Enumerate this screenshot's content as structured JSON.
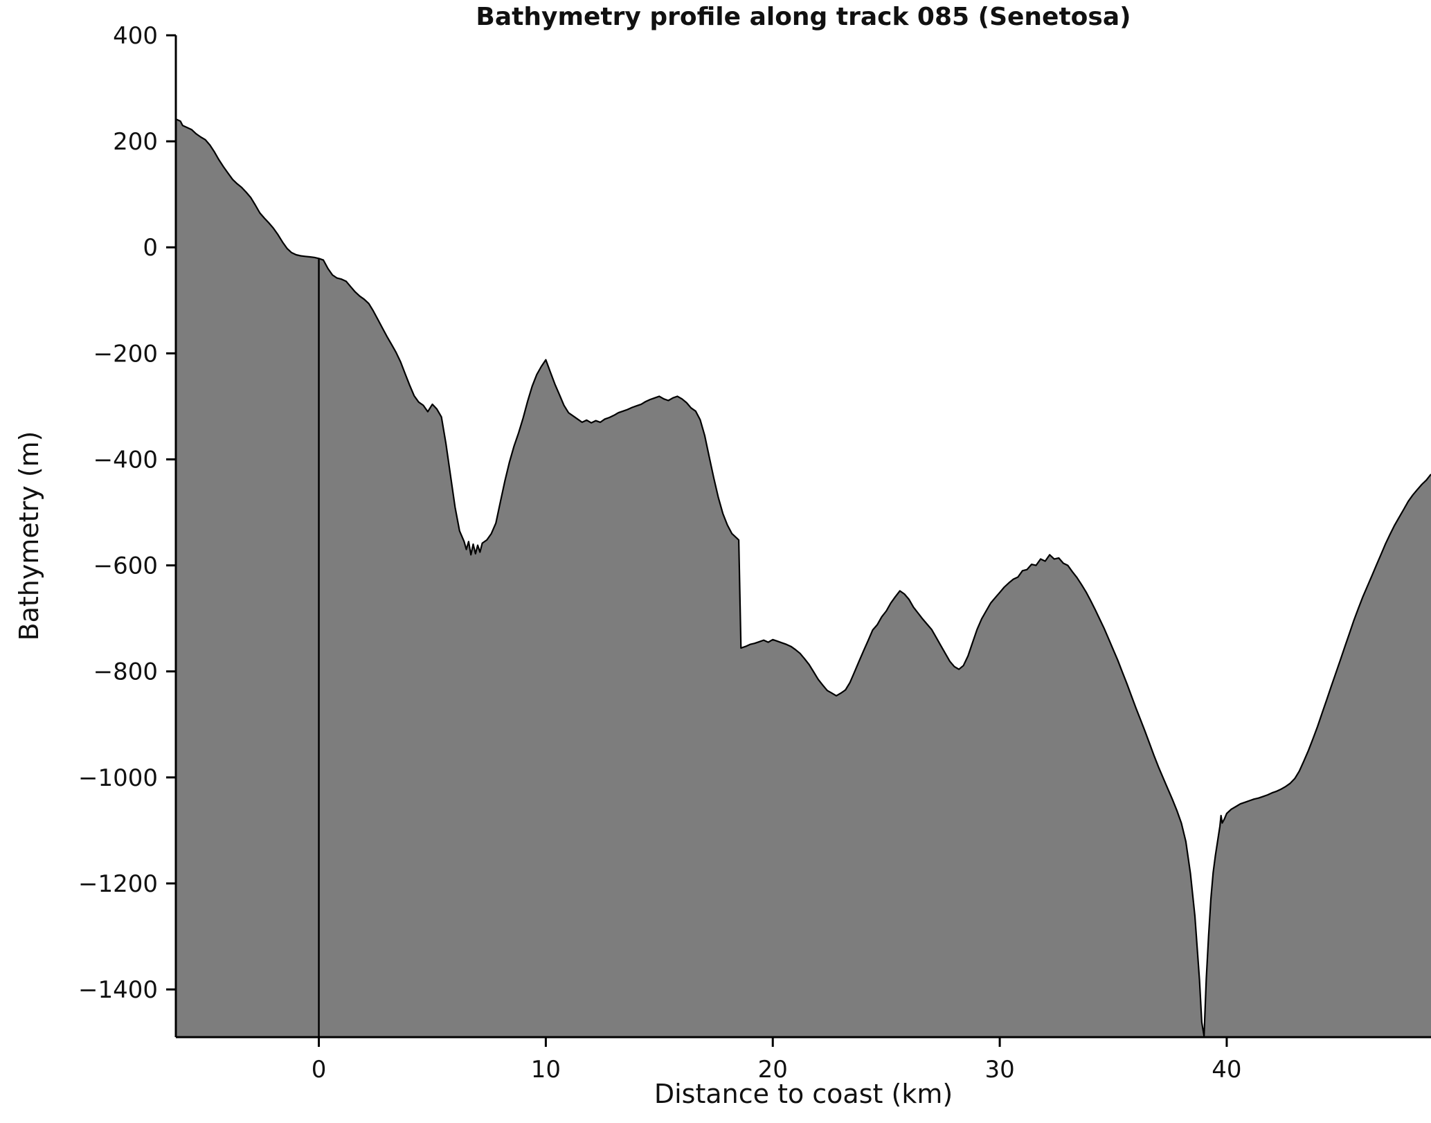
{
  "figure": {
    "title": "Bathymetry profile along track 085 (Senetosa)",
    "xlabel": "Distance to coast (km)",
    "ylabel": "Bathymetry (m)"
  },
  "chart_data": {
    "type": "area",
    "title": "Bathymetry profile along track 085 (Senetosa)",
    "xlabel": "Distance to coast (km)",
    "ylabel": "Bathymetry (m)",
    "xlim": [
      -6.3,
      49
    ],
    "ylim": [
      -1490,
      400
    ],
    "x_ticks": [
      0,
      10,
      20,
      30,
      40
    ],
    "y_ticks": [
      400,
      200,
      0,
      -200,
      -400,
      -600,
      -800,
      -1000,
      -1200,
      -1400
    ],
    "grid": false,
    "legend": "none",
    "fill_color": "#7d7d7d",
    "line_color": "#000000",
    "coast_line_x": 0,
    "points": [
      [
        -6.3,
        242
      ],
      [
        -6.1,
        238
      ],
      [
        -6,
        230
      ],
      [
        -5.8,
        226
      ],
      [
        -5.6,
        222
      ],
      [
        -5.4,
        214
      ],
      [
        -5.2,
        208
      ],
      [
        -5,
        203
      ],
      [
        -4.8,
        193
      ],
      [
        -4.6,
        180
      ],
      [
        -4.4,
        165
      ],
      [
        -4.2,
        152
      ],
      [
        -4,
        140
      ],
      [
        -3.8,
        128
      ],
      [
        -3.6,
        120
      ],
      [
        -3.4,
        113
      ],
      [
        -3.2,
        104
      ],
      [
        -3,
        94
      ],
      [
        -2.8,
        80
      ],
      [
        -2.6,
        65
      ],
      [
        -2.4,
        55
      ],
      [
        -2.2,
        46
      ],
      [
        -2,
        36
      ],
      [
        -1.8,
        24
      ],
      [
        -1.6,
        10
      ],
      [
        -1.4,
        -2
      ],
      [
        -1.2,
        -10
      ],
      [
        -1,
        -14
      ],
      [
        -0.8,
        -16
      ],
      [
        -0.6,
        -17
      ],
      [
        -0.4,
        -18
      ],
      [
        -0.2,
        -19
      ],
      [
        0,
        -21
      ],
      [
        0.2,
        -24
      ],
      [
        0.4,
        -40
      ],
      [
        0.6,
        -52
      ],
      [
        0.8,
        -58
      ],
      [
        1,
        -60
      ],
      [
        1.2,
        -64
      ],
      [
        1.4,
        -74
      ],
      [
        1.6,
        -84
      ],
      [
        1.8,
        -92
      ],
      [
        2,
        -98
      ],
      [
        2.2,
        -106
      ],
      [
        2.4,
        -120
      ],
      [
        2.6,
        -136
      ],
      [
        2.8,
        -152
      ],
      [
        3,
        -168
      ],
      [
        3.2,
        -183
      ],
      [
        3.4,
        -198
      ],
      [
        3.6,
        -216
      ],
      [
        3.8,
        -238
      ],
      [
        4,
        -260
      ],
      [
        4.2,
        -280
      ],
      [
        4.4,
        -292
      ],
      [
        4.6,
        -298
      ],
      [
        4.8,
        -310
      ],
      [
        5,
        -296
      ],
      [
        5.2,
        -305
      ],
      [
        5.4,
        -320
      ],
      [
        5.6,
        -370
      ],
      [
        5.8,
        -430
      ],
      [
        6,
        -490
      ],
      [
        6.2,
        -535
      ],
      [
        6.4,
        -555
      ],
      [
        6.5,
        -570
      ],
      [
        6.6,
        -555
      ],
      [
        6.7,
        -580
      ],
      [
        6.8,
        -560
      ],
      [
        6.9,
        -578
      ],
      [
        7,
        -562
      ],
      [
        7.1,
        -575
      ],
      [
        7.2,
        -558
      ],
      [
        7.4,
        -552
      ],
      [
        7.6,
        -540
      ],
      [
        7.8,
        -520
      ],
      [
        8,
        -480
      ],
      [
        8.2,
        -440
      ],
      [
        8.4,
        -405
      ],
      [
        8.6,
        -375
      ],
      [
        8.8,
        -350
      ],
      [
        9,
        -322
      ],
      [
        9.2,
        -290
      ],
      [
        9.4,
        -262
      ],
      [
        9.6,
        -240
      ],
      [
        9.8,
        -225
      ],
      [
        10,
        -212
      ],
      [
        10.2,
        -235
      ],
      [
        10.4,
        -258
      ],
      [
        10.6,
        -278
      ],
      [
        10.8,
        -298
      ],
      [
        11,
        -312
      ],
      [
        11.2,
        -318
      ],
      [
        11.4,
        -324
      ],
      [
        11.6,
        -330
      ],
      [
        11.8,
        -326
      ],
      [
        12,
        -331
      ],
      [
        12.2,
        -327
      ],
      [
        12.4,
        -330
      ],
      [
        12.6,
        -324
      ],
      [
        12.8,
        -321
      ],
      [
        13,
        -317
      ],
      [
        13.2,
        -312
      ],
      [
        13.4,
        -309
      ],
      [
        13.6,
        -306
      ],
      [
        13.8,
        -302
      ],
      [
        14,
        -299
      ],
      [
        14.2,
        -296
      ],
      [
        14.4,
        -291
      ],
      [
        14.6,
        -287
      ],
      [
        14.8,
        -284
      ],
      [
        15,
        -281
      ],
      [
        15.2,
        -286
      ],
      [
        15.4,
        -289
      ],
      [
        15.6,
        -284
      ],
      [
        15.8,
        -281
      ],
      [
        16,
        -286
      ],
      [
        16.2,
        -293
      ],
      [
        16.4,
        -303
      ],
      [
        16.6,
        -309
      ],
      [
        16.8,
        -325
      ],
      [
        17,
        -355
      ],
      [
        17.2,
        -395
      ],
      [
        17.4,
        -435
      ],
      [
        17.6,
        -472
      ],
      [
        17.8,
        -502
      ],
      [
        18,
        -524
      ],
      [
        18.2,
        -540
      ],
      [
        18.4,
        -548
      ],
      [
        18.5,
        -552
      ],
      [
        18.6,
        -756
      ],
      [
        18.8,
        -753
      ],
      [
        19,
        -749
      ],
      [
        19.2,
        -747
      ],
      [
        19.4,
        -744
      ],
      [
        19.6,
        -741
      ],
      [
        19.8,
        -745
      ],
      [
        20,
        -740
      ],
      [
        20.2,
        -743
      ],
      [
        20.4,
        -746
      ],
      [
        20.6,
        -749
      ],
      [
        20.8,
        -753
      ],
      [
        21,
        -759
      ],
      [
        21.2,
        -766
      ],
      [
        21.4,
        -776
      ],
      [
        21.6,
        -787
      ],
      [
        21.8,
        -801
      ],
      [
        22,
        -815
      ],
      [
        22.2,
        -826
      ],
      [
        22.4,
        -836
      ],
      [
        22.6,
        -841
      ],
      [
        22.8,
        -846
      ],
      [
        23,
        -841
      ],
      [
        23.2,
        -835
      ],
      [
        23.4,
        -821
      ],
      [
        23.6,
        -801
      ],
      [
        23.8,
        -781
      ],
      [
        24,
        -761
      ],
      [
        24.2,
        -742
      ],
      [
        24.4,
        -722
      ],
      [
        24.6,
        -712
      ],
      [
        24.8,
        -697
      ],
      [
        25,
        -686
      ],
      [
        25.2,
        -671
      ],
      [
        25.4,
        -659
      ],
      [
        25.6,
        -648
      ],
      [
        25.8,
        -654
      ],
      [
        26,
        -664
      ],
      [
        26.2,
        -679
      ],
      [
        26.4,
        -690
      ],
      [
        26.6,
        -701
      ],
      [
        26.8,
        -711
      ],
      [
        27,
        -721
      ],
      [
        27.2,
        -736
      ],
      [
        27.4,
        -751
      ],
      [
        27.6,
        -766
      ],
      [
        27.8,
        -781
      ],
      [
        28,
        -791
      ],
      [
        28.2,
        -796
      ],
      [
        28.4,
        -789
      ],
      [
        28.6,
        -771
      ],
      [
        28.8,
        -746
      ],
      [
        29,
        -721
      ],
      [
        29.2,
        -701
      ],
      [
        29.4,
        -686
      ],
      [
        29.6,
        -671
      ],
      [
        29.8,
        -661
      ],
      [
        30,
        -651
      ],
      [
        30.2,
        -641
      ],
      [
        30.4,
        -633
      ],
      [
        30.6,
        -626
      ],
      [
        30.8,
        -622
      ],
      [
        31,
        -610
      ],
      [
        31.2,
        -608
      ],
      [
        31.4,
        -598
      ],
      [
        31.6,
        -600
      ],
      [
        31.8,
        -588
      ],
      [
        32,
        -592
      ],
      [
        32.2,
        -580
      ],
      [
        32.4,
        -588
      ],
      [
        32.6,
        -586
      ],
      [
        32.8,
        -596
      ],
      [
        33,
        -600
      ],
      [
        33.2,
        -612
      ],
      [
        33.4,
        -623
      ],
      [
        33.6,
        -636
      ],
      [
        33.8,
        -650
      ],
      [
        34,
        -666
      ],
      [
        34.2,
        -683
      ],
      [
        34.4,
        -701
      ],
      [
        34.6,
        -719
      ],
      [
        34.8,
        -739
      ],
      [
        35,
        -759
      ],
      [
        35.2,
        -779
      ],
      [
        35.4,
        -801
      ],
      [
        35.6,
        -823
      ],
      [
        35.8,
        -846
      ],
      [
        36,
        -869
      ],
      [
        36.2,
        -891
      ],
      [
        36.4,
        -913
      ],
      [
        36.6,
        -936
      ],
      [
        36.8,
        -959
      ],
      [
        37,
        -981
      ],
      [
        37.2,
        -1001
      ],
      [
        37.4,
        -1021
      ],
      [
        37.6,
        -1041
      ],
      [
        37.8,
        -1062
      ],
      [
        38,
        -1086
      ],
      [
        38.2,
        -1121
      ],
      [
        38.4,
        -1181
      ],
      [
        38.6,
        -1262
      ],
      [
        38.8,
        -1382
      ],
      [
        38.9,
        -1462
      ],
      [
        39,
        -1488
      ],
      [
        39.1,
        -1380
      ],
      [
        39.2,
        -1300
      ],
      [
        39.3,
        -1230
      ],
      [
        39.4,
        -1180
      ],
      [
        39.5,
        -1148
      ],
      [
        39.6,
        -1120
      ],
      [
        39.7,
        -1092
      ],
      [
        39.75,
        -1072
      ],
      [
        39.8,
        -1086
      ],
      [
        39.9,
        -1078
      ],
      [
        40,
        -1068
      ],
      [
        40.2,
        -1060
      ],
      [
        40.4,
        -1055
      ],
      [
        40.6,
        -1050
      ],
      [
        40.8,
        -1047
      ],
      [
        41,
        -1044
      ],
      [
        41.2,
        -1041
      ],
      [
        41.4,
        -1039
      ],
      [
        41.6,
        -1036
      ],
      [
        41.8,
        -1033
      ],
      [
        42,
        -1029
      ],
      [
        42.2,
        -1026
      ],
      [
        42.4,
        -1022
      ],
      [
        42.6,
        -1017
      ],
      [
        42.8,
        -1011
      ],
      [
        43,
        -1002
      ],
      [
        43.2,
        -988
      ],
      [
        43.4,
        -969
      ],
      [
        43.6,
        -949
      ],
      [
        43.8,
        -927
      ],
      [
        44,
        -904
      ],
      [
        44.2,
        -879
      ],
      [
        44.4,
        -854
      ],
      [
        44.6,
        -829
      ],
      [
        44.8,
        -804
      ],
      [
        45,
        -779
      ],
      [
        45.2,
        -754
      ],
      [
        45.4,
        -729
      ],
      [
        45.6,
        -704
      ],
      [
        45.8,
        -681
      ],
      [
        46,
        -659
      ],
      [
        46.2,
        -639
      ],
      [
        46.4,
        -619
      ],
      [
        46.6,
        -599
      ],
      [
        46.8,
        -579
      ],
      [
        47,
        -559
      ],
      [
        47.2,
        -541
      ],
      [
        47.4,
        -524
      ],
      [
        47.6,
        -509
      ],
      [
        47.8,
        -494
      ],
      [
        48,
        -479
      ],
      [
        48.2,
        -467
      ],
      [
        48.4,
        -457
      ],
      [
        48.6,
        -447
      ],
      [
        48.8,
        -439
      ],
      [
        49,
        -428
      ]
    ]
  }
}
